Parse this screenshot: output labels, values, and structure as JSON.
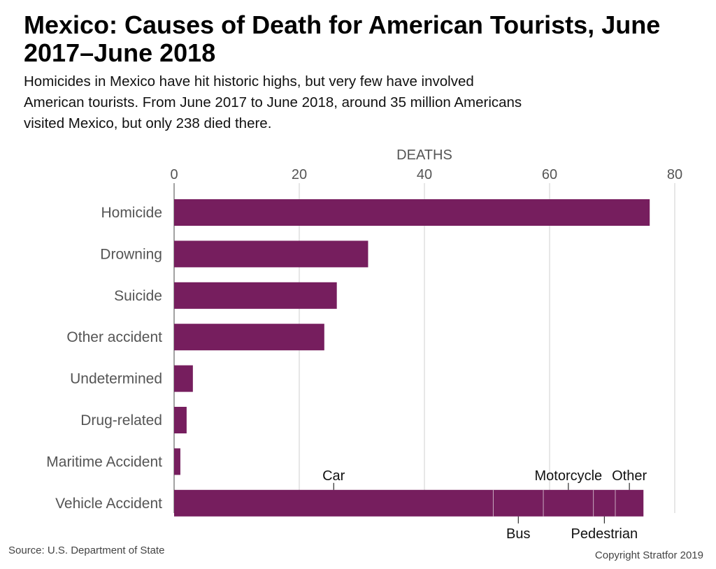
{
  "title": "Mexico: Causes of Death for American Tourists, June 2017–June 2018",
  "subtitle": "Homicides in Mexico have hit historic highs, but very few have involved American tourists. From June 2017 to June 2018, around 35 million Americans visited Mexico, but only 238 died there.",
  "source": "Source: U.S. Department of State",
  "copyright": "Copyright Stratfor 2019",
  "colors": {
    "bar": "#761e5e",
    "grid": "#cfcfcf",
    "label": "#555555"
  },
  "chart_data": {
    "type": "bar",
    "orientation": "horizontal",
    "xlabel": "DEATHS",
    "xlim": [
      0,
      80
    ],
    "xticks": [
      0,
      20,
      40,
      60,
      80
    ],
    "grid": true,
    "categories": [
      "Homicide",
      "Drowning",
      "Suicide",
      "Other accident",
      "Undetermined",
      "Drug-related",
      "Maritime Accident",
      "Vehicle Accident"
    ],
    "values": [
      76,
      31,
      26,
      24,
      3,
      2,
      1,
      75
    ],
    "vehicle_breakdown": [
      {
        "name": "Car",
        "value": 51
      },
      {
        "name": "Bus",
        "value": 8
      },
      {
        "name": "Motorcycle",
        "value": 8
      },
      {
        "name": "Pedestrian",
        "value": 3.5
      },
      {
        "name": "Other",
        "value": 4.5
      }
    ]
  }
}
